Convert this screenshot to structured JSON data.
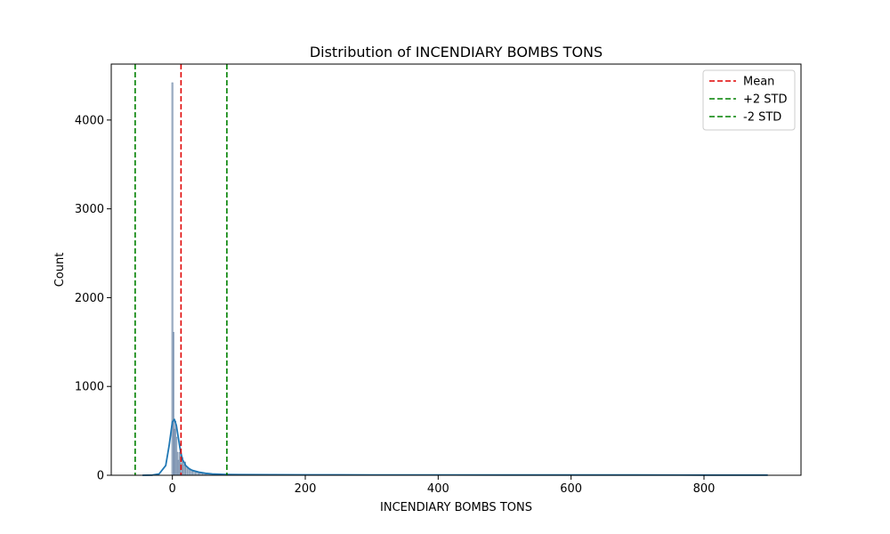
{
  "chart_data": {
    "type": "histogram",
    "title": "Distribution of INCENDIARY BOMBS TONS",
    "xlabel": "INCENDIARY BOMBS TONS",
    "ylabel": "Count",
    "xlim": [
      -92,
      946
    ],
    "ylim": [
      0,
      4630
    ],
    "x_ticks": [
      0,
      200,
      400,
      600,
      800
    ],
    "y_ticks": [
      0,
      1000,
      2000,
      3000,
      4000
    ],
    "bars": [
      {
        "x0": -1.0,
        "x1": 1.0,
        "count": 4420
      },
      {
        "x0": 1.0,
        "x1": 2.5,
        "count": 1610
      },
      {
        "x0": 2.5,
        "x1": 4.0,
        "count": 520
      },
      {
        "x0": 4.0,
        "x1": 5.5,
        "count": 610
      },
      {
        "x0": 5.5,
        "x1": 7.0,
        "count": 430
      },
      {
        "x0": 7.0,
        "x1": 8.5,
        "count": 260
      },
      {
        "x0": 8.5,
        "x1": 10.0,
        "count": 170
      },
      {
        "x0": 10.0,
        "x1": 12.0,
        "count": 260
      },
      {
        "x0": 12.0,
        "x1": 14.0,
        "count": 140
      },
      {
        "x0": 14.0,
        "x1": 16.0,
        "count": 200
      },
      {
        "x0": 16.0,
        "x1": 18.0,
        "count": 120
      },
      {
        "x0": 18.0,
        "x1": 20.0,
        "count": 150
      },
      {
        "x0": 20.0,
        "x1": 23.0,
        "count": 95
      },
      {
        "x0": 23.0,
        "x1": 26.0,
        "count": 80
      },
      {
        "x0": 26.0,
        "x1": 30.0,
        "count": 60
      },
      {
        "x0": 30.0,
        "x1": 35.0,
        "count": 45
      },
      {
        "x0": 35.0,
        "x1": 40.0,
        "count": 35
      },
      {
        "x0": 40.0,
        "x1": 45.0,
        "count": 25
      },
      {
        "x0": 45.0,
        "x1": 50.0,
        "count": 20
      },
      {
        "x0": 50.0,
        "x1": 60.0,
        "count": 15
      },
      {
        "x0": 60.0,
        "x1": 70.0,
        "count": 10
      },
      {
        "x0": 70.0,
        "x1": 85.0,
        "count": 8
      },
      {
        "x0": 85.0,
        "x1": 100.0,
        "count": 6
      },
      {
        "x0": 100.0,
        "x1": 130.0,
        "count": 4
      },
      {
        "x0": 130.0,
        "x1": 170.0,
        "count": 3
      },
      {
        "x0": 170.0,
        "x1": 220.0,
        "count": 2
      }
    ],
    "kde": {
      "x": [
        -45,
        -30,
        -20,
        -10,
        -5,
        0,
        3,
        6,
        9,
        12,
        15,
        20,
        25,
        30,
        40,
        50,
        60,
        80,
        100,
        150,
        200,
        300,
        400,
        500,
        600,
        700,
        800,
        896
      ],
      "y": [
        0,
        2,
        15,
        110,
        330,
        600,
        630,
        560,
        420,
        280,
        180,
        110,
        75,
        55,
        35,
        22,
        15,
        9,
        7,
        6,
        5,
        4,
        4,
        3,
        3,
        3,
        2,
        2
      ]
    },
    "reference_lines": [
      {
        "name": "Mean",
        "x": 13.0,
        "color": "#e00000"
      },
      {
        "name": "+2 STD",
        "x": 82.0,
        "color": "#008000"
      },
      {
        "name": "-2 STD",
        "x": -56.0,
        "color": "#008000"
      }
    ],
    "colors": {
      "bar_fill": "#8ea1b8",
      "bar_edge": "#6b85a8",
      "kde_line": "#1f77b4"
    },
    "legend_position": "upper-right",
    "grid": false
  }
}
